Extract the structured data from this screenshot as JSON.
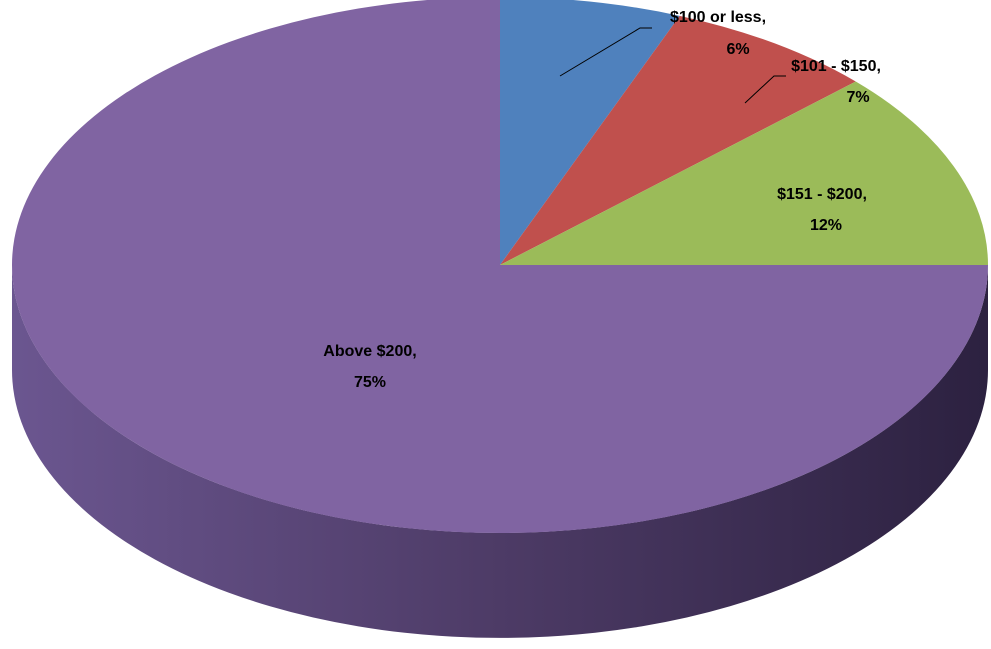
{
  "chart_data": {
    "type": "pie",
    "categories": [
      "$100 or less,",
      "$101 - $150,",
      "$151 - $200,",
      "Above $200,"
    ],
    "values": [
      6,
      7,
      12,
      75
    ],
    "value_labels": [
      "6%",
      "7%",
      "12%",
      "75%"
    ],
    "colors": [
      "#4f81bd",
      "#c0504d",
      "#9bbb59",
      "#8064a2"
    ],
    "start_angle": 90,
    "direction": "clockwise"
  }
}
